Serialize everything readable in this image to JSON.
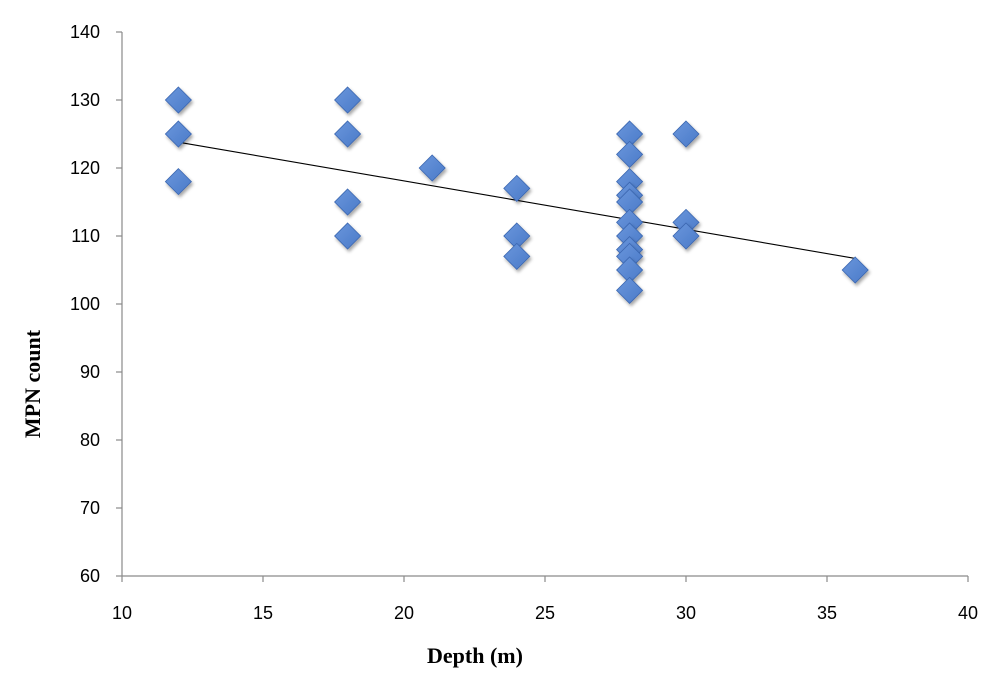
{
  "chart_data": {
    "type": "scatter",
    "title": "",
    "xlabel": "Depth (m)",
    "ylabel": "MPN count",
    "xlim": [
      10,
      40
    ],
    "ylim": [
      60,
      140
    ],
    "xticks": [
      "10",
      "15",
      "20",
      "25",
      "30",
      "35",
      "40"
    ],
    "yticks": [
      "60",
      "70",
      "80",
      "90",
      "100",
      "110",
      "120",
      "130",
      "140"
    ],
    "grid": false,
    "legend": "none",
    "marker": "diamond",
    "color": "#4a7ac8",
    "points": [
      {
        "x": 12,
        "y": 130
      },
      {
        "x": 12,
        "y": 125
      },
      {
        "x": 12,
        "y": 118
      },
      {
        "x": 18,
        "y": 130
      },
      {
        "x": 18,
        "y": 125
      },
      {
        "x": 18,
        "y": 115
      },
      {
        "x": 18,
        "y": 110
      },
      {
        "x": 21,
        "y": 120
      },
      {
        "x": 24,
        "y": 117
      },
      {
        "x": 24,
        "y": 110
      },
      {
        "x": 24,
        "y": 107
      },
      {
        "x": 28,
        "y": 125
      },
      {
        "x": 28,
        "y": 122
      },
      {
        "x": 28,
        "y": 118
      },
      {
        "x": 28,
        "y": 116
      },
      {
        "x": 28,
        "y": 115
      },
      {
        "x": 28,
        "y": 112
      },
      {
        "x": 28,
        "y": 110
      },
      {
        "x": 28,
        "y": 108
      },
      {
        "x": 28,
        "y": 107
      },
      {
        "x": 28,
        "y": 105
      },
      {
        "x": 28,
        "y": 102
      },
      {
        "x": 30,
        "y": 125
      },
      {
        "x": 30,
        "y": 112
      },
      {
        "x": 30,
        "y": 110
      },
      {
        "x": 36,
        "y": 105
      }
    ],
    "trendline": {
      "x": [
        12,
        36
      ],
      "y": [
        123.8,
        106.7
      ]
    }
  }
}
